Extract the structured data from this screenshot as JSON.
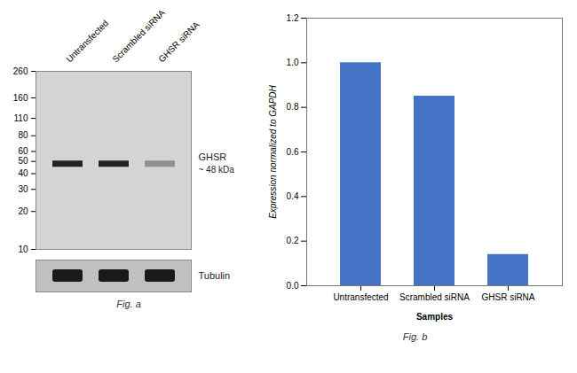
{
  "chart_data": [
    {
      "type": "blot",
      "categories": [
        "Untransfected",
        "Scrambled siRNA",
        "GHSR siRNA"
      ],
      "bands": {
        "values": [
          48,
          48,
          48
        ],
        "colors": [
          "#222222",
          "#222222",
          "#909090"
        ]
      },
      "log": "y",
      "ylim": [
        10,
        260
      ],
      "yticks": [
        260,
        160,
        110,
        80,
        60,
        50,
        40,
        30,
        20,
        10
      ],
      "annotations": [
        {
          "text": "GHSR",
          "y": 48
        },
        {
          "text": "~ 48 kDa",
          "y": 48
        }
      ],
      "loading_control": "Tubulin",
      "caption": "Fig. a"
    },
    {
      "type": "bar",
      "categories": [
        "Untransfected",
        "Scrambled siRNA",
        "GHSR siRNA"
      ],
      "values": [
        1.0,
        0.85,
        0.14
      ],
      "color": "#4472c4",
      "xlabel": "Samples",
      "ylabel": "Expression normalized to GAPDH",
      "ylim": [
        0,
        1.2
      ],
      "yticks": [
        {
          "value": 0,
          "label": "0.0"
        },
        0.2,
        0.4,
        0.6,
        0.8,
        {
          "value": 1.0,
          "label": "1.0"
        },
        1.2
      ],
      "grid": false,
      "caption": "Fig. b"
    }
  ]
}
